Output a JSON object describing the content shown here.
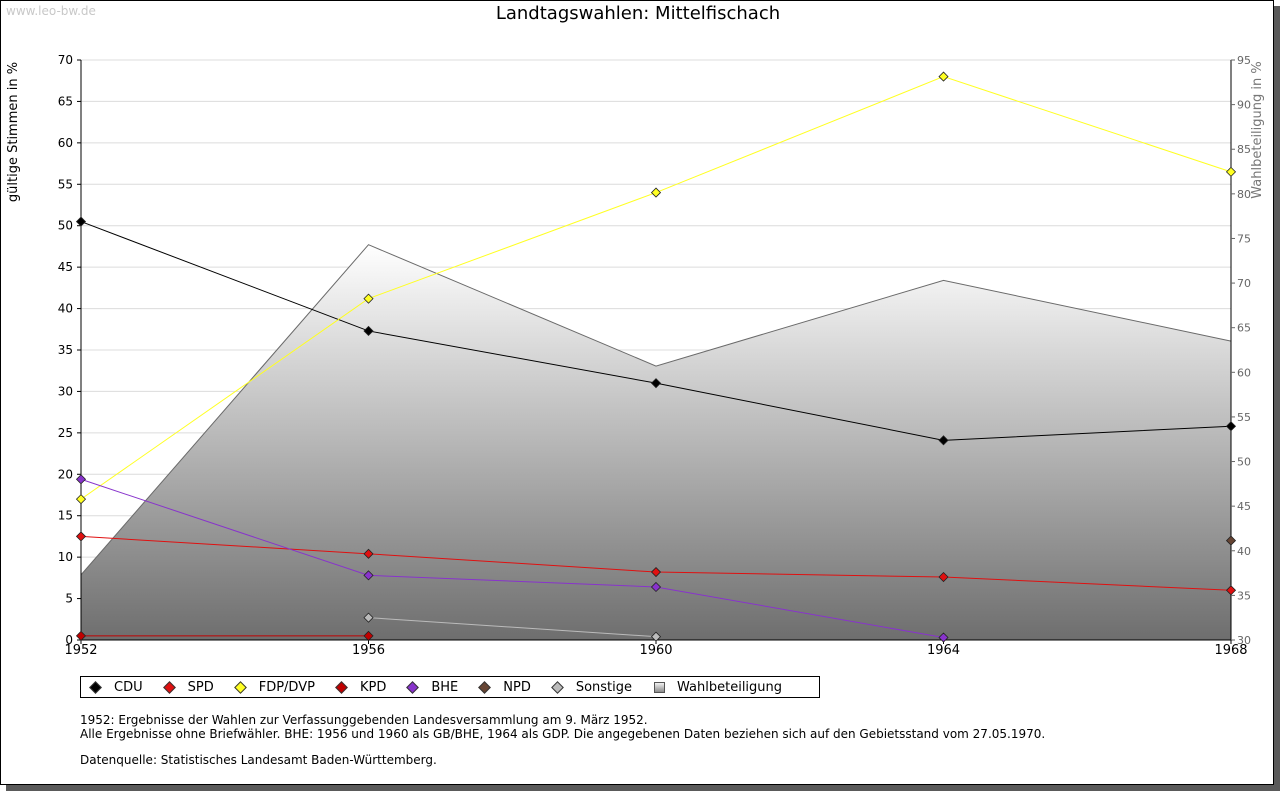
{
  "watermark": "www.leo-bw.de",
  "chart_data": {
    "type": "line",
    "title": "Landtagswahlen: Mittelfischach",
    "ylabel": "gültige Stimmen in %",
    "ylabel_right": "Wahlbeteiligung in %",
    "x": [
      1952,
      1956,
      1960,
      1964,
      1968
    ],
    "ylim": [
      0,
      70
    ],
    "y_ticks": [
      0,
      5,
      10,
      15,
      20,
      25,
      30,
      35,
      40,
      45,
      50,
      55,
      60,
      65,
      70
    ],
    "ylim_right": [
      30,
      95
    ],
    "y_ticks_right": [
      30,
      35,
      40,
      45,
      50,
      55,
      60,
      65,
      70,
      75,
      80,
      85,
      90,
      95
    ],
    "series": [
      {
        "name": "CDU",
        "color": "#000000",
        "values": [
          50.5,
          37.3,
          31.0,
          24.1,
          25.8
        ]
      },
      {
        "name": "SPD",
        "color": "#e01010",
        "values": [
          12.5,
          10.4,
          8.2,
          7.6,
          6.0
        ]
      },
      {
        "name": "FDP/DVP",
        "color": "#ffff22",
        "values": [
          17.0,
          41.2,
          54.0,
          68.0,
          56.5
        ]
      },
      {
        "name": "KPD",
        "color": "#c00000",
        "values": [
          0.5,
          0.5,
          null,
          null,
          null
        ]
      },
      {
        "name": "BHE",
        "color": "#8833cc",
        "values": [
          19.4,
          7.8,
          6.4,
          0.3,
          null
        ]
      },
      {
        "name": "NPD",
        "color": "#664433",
        "values": [
          null,
          null,
          null,
          null,
          12.0
        ]
      },
      {
        "name": "Sonstige",
        "color": "#bbbbbb",
        "values": [
          null,
          2.7,
          0.4,
          null,
          null
        ]
      }
    ],
    "area": {
      "name": "Wahlbeteiligung",
      "axis": "right",
      "values": [
        37.3,
        74.3,
        60.7,
        70.3,
        63.5
      ]
    }
  },
  "notes": {
    "line1": "1952: Ergebnisse der Wahlen zur Verfassunggebenden Landesversammlung am 9. März 1952.",
    "line2": "Alle Ergebnisse ohne Briefwähler. BHE: 1956 und 1960 als GB/BHE, 1964 als GDP. Die angegebenen Daten beziehen sich auf den Gebietsstand vom 27.05.1970.",
    "source": "Datenquelle: Statistisches Landesamt Baden-Württemberg."
  }
}
